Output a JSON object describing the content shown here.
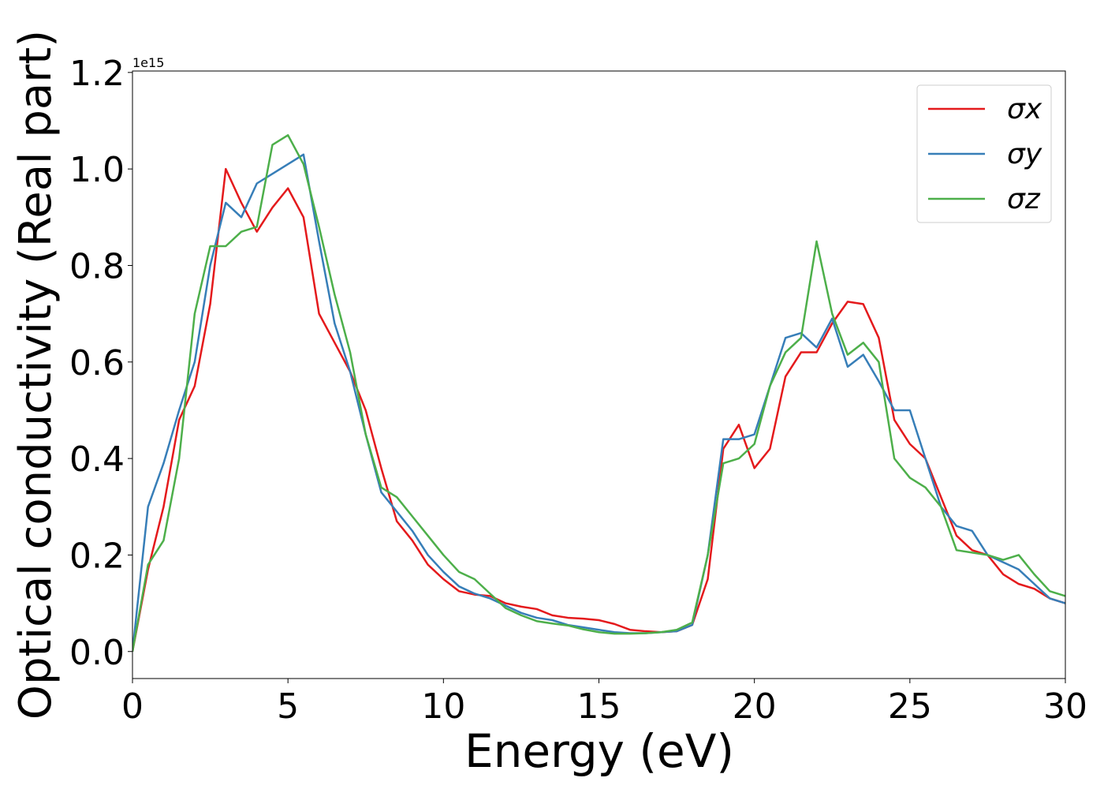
{
  "chart_data": {
    "type": "line",
    "x_label": "Energy (eV)",
    "y_label": "Optical conductivity (Real part)",
    "y_offset": "1e15",
    "x": [
      0,
      0.5,
      1,
      1.5,
      2,
      2.5,
      3,
      3.5,
      4,
      4.5,
      5,
      5.5,
      6,
      6.5,
      7,
      7.5,
      8,
      8.5,
      9,
      9.5,
      10,
      10.5,
      11,
      11.5,
      12,
      12.5,
      13,
      13.5,
      14,
      14.5,
      15,
      15.5,
      16,
      16.5,
      17,
      17.5,
      18,
      18.5,
      19,
      19.5,
      20,
      20.5,
      21,
      21.5,
      22,
      22.5,
      23,
      23.5,
      24,
      24.5,
      25,
      25.5,
      26,
      26.5,
      27,
      27.5,
      28,
      28.5,
      29,
      29.5,
      30
    ],
    "series": [
      {
        "name": "σx",
        "color": "#e41a1c",
        "values": [
          0.0,
          0.17,
          0.3,
          0.48,
          0.55,
          0.72,
          1.0,
          0.93,
          0.87,
          0.92,
          0.96,
          0.9,
          0.7,
          0.64,
          0.58,
          0.5,
          0.38,
          0.27,
          0.23,
          0.18,
          0.15,
          0.125,
          0.118,
          0.115,
          0.1,
          0.093,
          0.088,
          0.075,
          0.07,
          0.068,
          0.065,
          0.057,
          0.045,
          0.042,
          0.04,
          0.042,
          0.055,
          0.15,
          0.42,
          0.47,
          0.38,
          0.42,
          0.57,
          0.62,
          0.62,
          0.68,
          0.725,
          0.72,
          0.65,
          0.48,
          0.43,
          0.4,
          0.32,
          0.24,
          0.21,
          0.2,
          0.16,
          0.14,
          0.13,
          0.11,
          0.1
        ]
      },
      {
        "name": "σy",
        "color": "#377eb8",
        "values": [
          0.0,
          0.3,
          0.39,
          0.5,
          0.6,
          0.8,
          0.93,
          0.9,
          0.97,
          0.99,
          1.01,
          1.03,
          0.85,
          0.68,
          0.58,
          0.45,
          0.33,
          0.29,
          0.25,
          0.2,
          0.165,
          0.135,
          0.12,
          0.11,
          0.095,
          0.08,
          0.07,
          0.065,
          0.055,
          0.05,
          0.045,
          0.04,
          0.038,
          0.038,
          0.04,
          0.042,
          0.055,
          0.2,
          0.44,
          0.44,
          0.45,
          0.55,
          0.65,
          0.66,
          0.63,
          0.69,
          0.59,
          0.615,
          0.56,
          0.5,
          0.5,
          0.4,
          0.3,
          0.26,
          0.25,
          0.2,
          0.185,
          0.17,
          0.14,
          0.11,
          0.1
        ]
      },
      {
        "name": "σz",
        "color": "#4daf4a",
        "values": [
          0.0,
          0.18,
          0.23,
          0.4,
          0.7,
          0.84,
          0.84,
          0.87,
          0.88,
          1.05,
          1.07,
          1.01,
          0.88,
          0.74,
          0.62,
          0.45,
          0.34,
          0.32,
          0.28,
          0.24,
          0.2,
          0.165,
          0.15,
          0.12,
          0.09,
          0.075,
          0.063,
          0.058,
          0.054,
          0.046,
          0.04,
          0.037,
          0.037,
          0.038,
          0.04,
          0.045,
          0.06,
          0.2,
          0.39,
          0.4,
          0.43,
          0.55,
          0.62,
          0.65,
          0.85,
          0.7,
          0.615,
          0.64,
          0.6,
          0.4,
          0.36,
          0.34,
          0.3,
          0.21,
          0.205,
          0.2,
          0.19,
          0.2,
          0.16,
          0.125,
          0.115
        ]
      }
    ],
    "xlim": [
      0,
      30
    ],
    "xticks": [
      0,
      5,
      10,
      15,
      20,
      25,
      30
    ],
    "ylim": [
      -0.056,
      1.203
    ],
    "yticks": [
      {
        "value": 0,
        "label": "0.0"
      },
      0.2,
      0.4,
      0.6,
      0.8,
      {
        "value": 1,
        "label": "1.0"
      },
      1.2
    ],
    "grid": false,
    "legend": "upper right"
  }
}
